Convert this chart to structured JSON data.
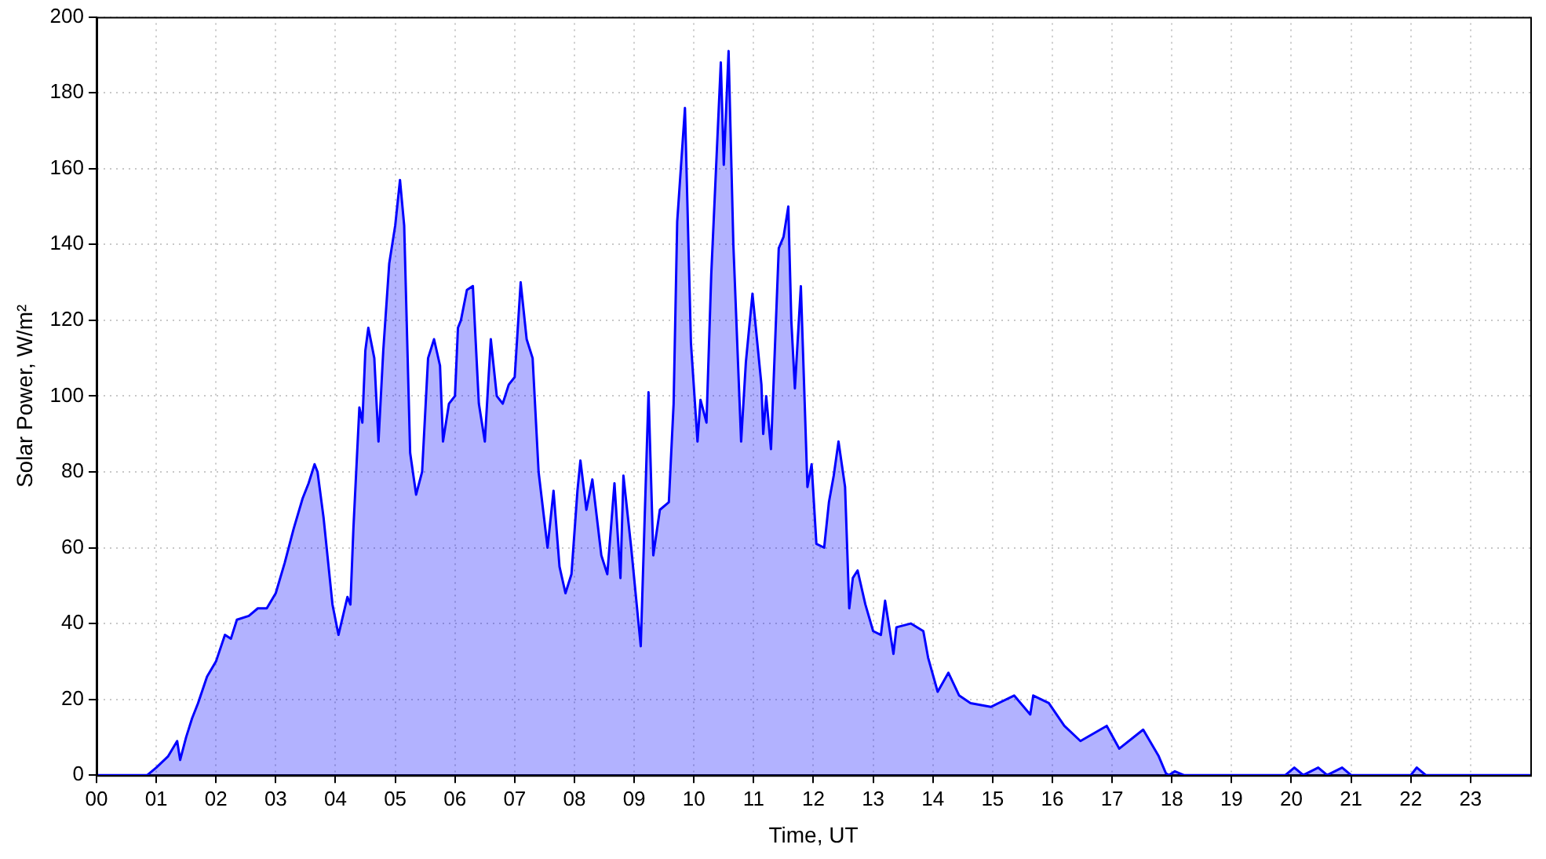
{
  "chart_data": {
    "type": "area",
    "xlabel": "Time, UT",
    "ylabel": "Solar Power, W/m²",
    "xlim": [
      0,
      24
    ],
    "ylim": [
      0,
      200
    ],
    "xticks": [
      {
        "value": 0,
        "label": "00"
      },
      {
        "value": 1,
        "label": "01"
      },
      {
        "value": 2,
        "label": "02"
      },
      {
        "value": 3,
        "label": "03"
      },
      {
        "value": 4,
        "label": "04"
      },
      {
        "value": 5,
        "label": "05"
      },
      {
        "value": 6,
        "label": "06"
      },
      {
        "value": 7,
        "label": "07"
      },
      {
        "value": 8,
        "label": "08"
      },
      {
        "value": 9,
        "label": "09"
      },
      {
        "value": 10,
        "label": "10"
      },
      {
        "value": 11,
        "label": "11"
      },
      {
        "value": 12,
        "label": "12"
      },
      {
        "value": 13,
        "label": "13"
      },
      {
        "value": 14,
        "label": "14"
      },
      {
        "value": 15,
        "label": "15"
      },
      {
        "value": 16,
        "label": "16"
      },
      {
        "value": 17,
        "label": "17"
      },
      {
        "value": 18,
        "label": "18"
      },
      {
        "value": 19,
        "label": "19"
      },
      {
        "value": 20,
        "label": "20"
      },
      {
        "value": 21,
        "label": "21"
      },
      {
        "value": 22,
        "label": "22"
      },
      {
        "value": 23,
        "label": "23"
      }
    ],
    "yticks": [
      0,
      20,
      40,
      60,
      80,
      100,
      120,
      140,
      160,
      180,
      200
    ],
    "grid": true,
    "legend": false,
    "marker": "none",
    "line_style": "solid",
    "x": [
      0,
      0.85,
      1.0,
      1.2,
      1.35,
      1.4,
      1.5,
      1.6,
      1.7,
      1.85,
      2.0,
      2.15,
      2.25,
      2.35,
      2.55,
      2.7,
      2.85,
      3.0,
      3.15,
      3.3,
      3.45,
      3.55,
      3.65,
      3.7,
      3.8,
      3.95,
      4.05,
      4.2,
      4.25,
      4.3,
      4.4,
      4.45,
      4.5,
      4.55,
      4.65,
      4.72,
      4.8,
      4.9,
      5.0,
      5.08,
      5.15,
      5.25,
      5.35,
      5.45,
      5.55,
      5.65,
      5.75,
      5.8,
      5.9,
      6.0,
      6.05,
      6.1,
      6.2,
      6.3,
      6.4,
      6.5,
      6.6,
      6.7,
      6.8,
      6.9,
      7.0,
      7.1,
      7.2,
      7.3,
      7.4,
      7.55,
      7.65,
      7.75,
      7.85,
      7.95,
      8.05,
      8.1,
      8.2,
      8.3,
      8.45,
      8.55,
      8.67,
      8.77,
      8.82,
      8.95,
      9.11,
      9.24,
      9.32,
      9.43,
      9.58,
      9.66,
      9.72,
      9.85,
      9.95,
      10.06,
      10.11,
      10.21,
      10.29,
      10.45,
      10.5,
      10.58,
      10.66,
      10.79,
      10.87,
      10.98,
      11.13,
      11.16,
      11.21,
      11.29,
      11.42,
      11.5,
      11.58,
      11.63,
      11.69,
      11.79,
      11.9,
      11.97,
      12.05,
      12.18,
      12.26,
      12.34,
      12.42,
      12.53,
      12.6,
      12.66,
      12.74,
      12.87,
      13.0,
      13.13,
      13.2,
      13.34,
      13.39,
      13.63,
      13.84,
      13.92,
      14.08,
      14.26,
      14.44,
      14.63,
      14.97,
      15.36,
      15.63,
      15.68,
      15.94,
      16.2,
      16.47,
      16.91,
      17.12,
      17.52,
      17.78,
      17.9,
      17.95,
      18.05,
      18.2,
      19.9,
      20.05,
      20.2,
      20.45,
      20.6,
      20.85,
      21.0,
      22.0,
      22.1,
      22.25,
      24
    ],
    "series": [
      {
        "color": "#0000ff",
        "values": [
          0,
          0,
          2,
          5,
          9,
          4,
          10,
          15,
          19,
          26,
          30,
          37,
          36,
          41,
          42,
          44,
          44,
          48,
          56,
          65,
          73,
          77,
          82,
          80,
          68,
          45,
          37,
          47,
          45,
          65,
          97,
          93,
          112,
          118,
          110,
          88,
          112,
          135,
          145,
          157,
          145,
          85,
          74,
          80,
          110,
          115,
          108,
          88,
          98,
          100,
          118,
          120,
          128,
          129,
          98,
          88,
          115,
          100,
          98,
          103,
          105,
          130,
          115,
          110,
          80,
          60,
          75,
          55,
          48,
          53,
          75,
          83,
          70,
          78,
          58,
          53,
          77,
          52,
          79,
          60,
          34,
          101,
          58,
          70,
          72,
          98,
          146,
          176,
          114,
          88,
          99,
          93,
          132,
          188,
          161,
          191,
          140,
          88,
          109,
          127,
          103,
          90,
          100,
          86,
          139,
          142,
          150,
          120,
          102,
          129,
          76,
          82,
          61,
          60,
          72,
          79,
          88,
          76,
          44,
          52,
          54,
          45,
          38,
          37,
          46,
          32,
          39,
          40,
          38,
          31,
          22,
          27,
          21,
          19,
          18,
          21,
          16,
          21,
          19,
          13,
          9,
          13,
          7,
          12,
          5,
          0.5,
          0,
          1,
          0,
          0,
          2,
          0,
          2,
          0,
          2,
          0,
          0,
          2,
          0,
          0
        ]
      }
    ]
  }
}
